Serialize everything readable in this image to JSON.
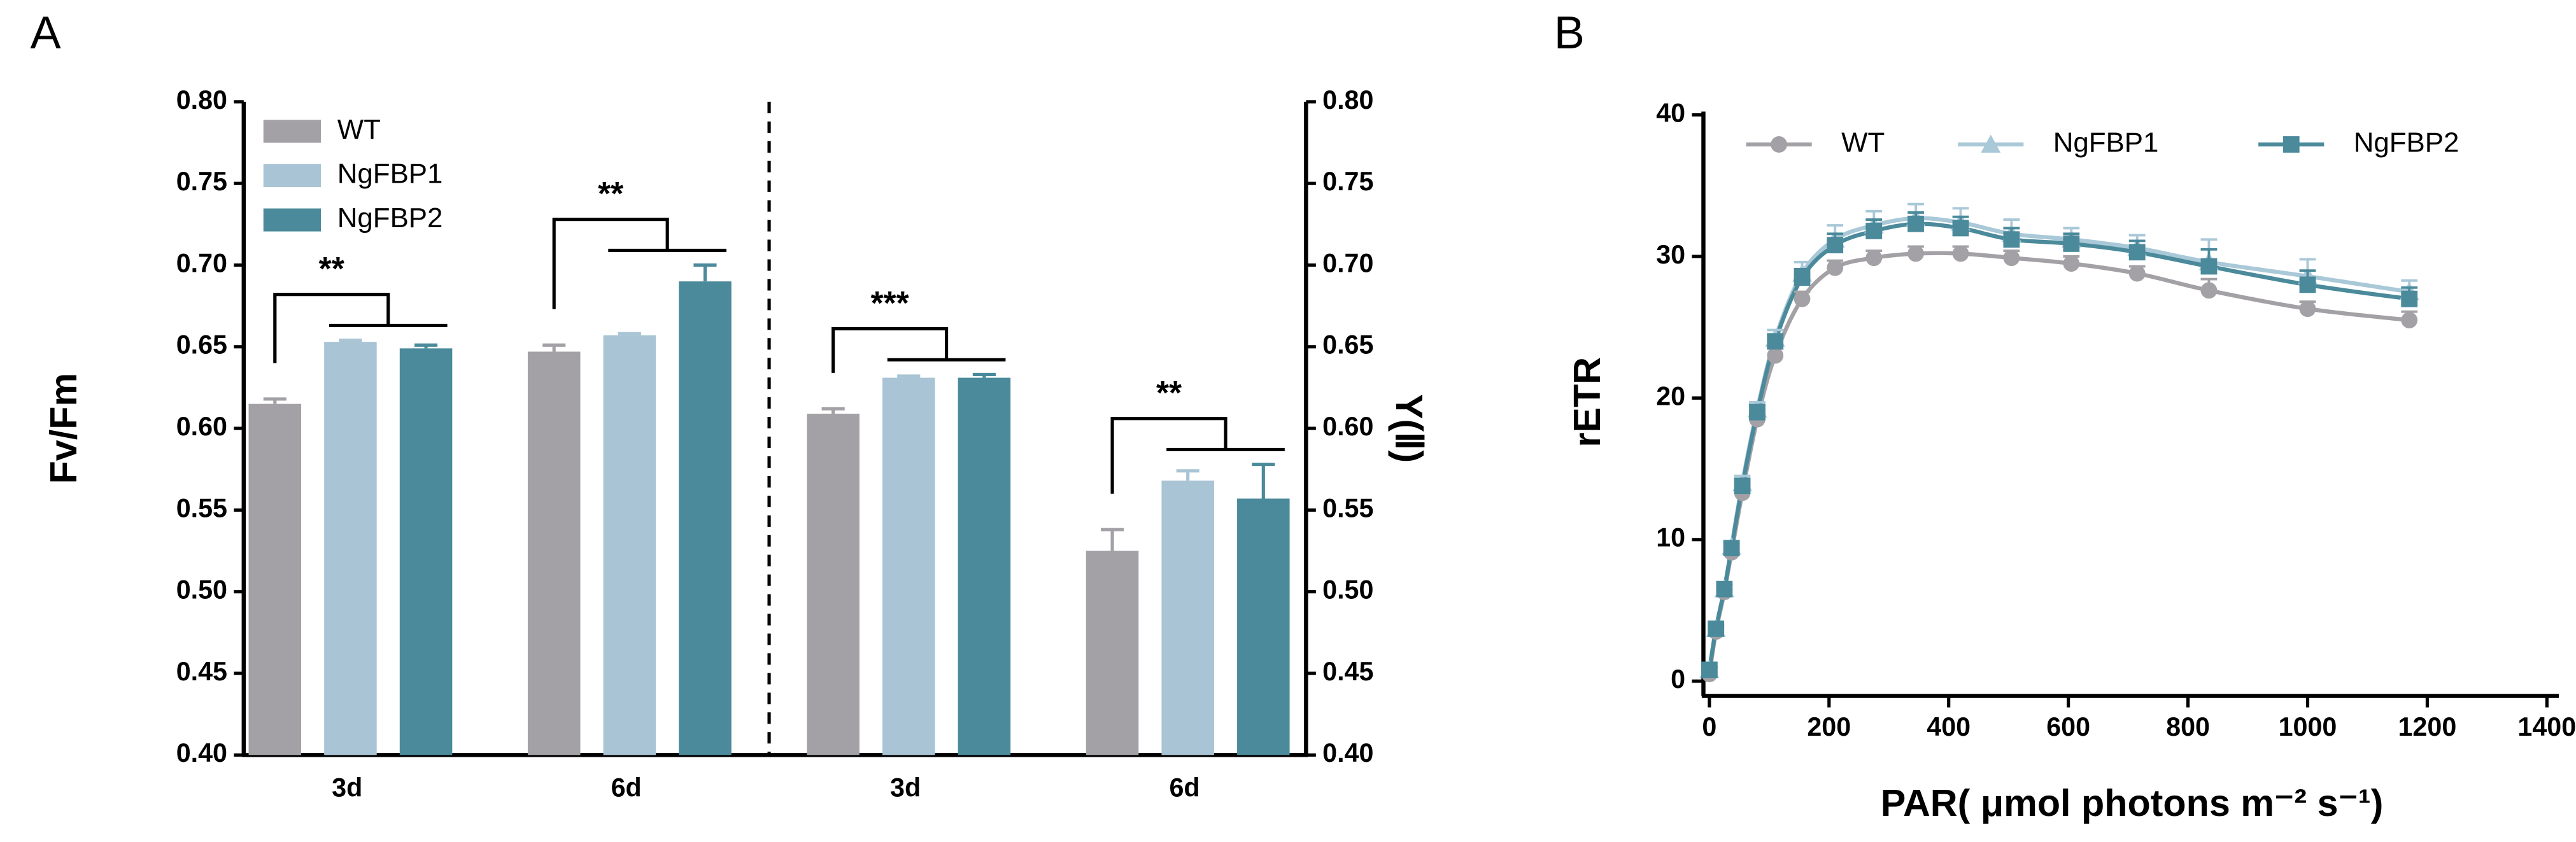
{
  "chart_data": [
    {
      "type": "bar",
      "panel_label": "A",
      "categories": [
        "3d",
        "6d",
        "3d",
        "6d"
      ],
      "series": [
        {
          "name": "WT",
          "color": "#a3a1a6",
          "values": [
            0.615,
            0.647,
            0.609,
            0.525
          ],
          "errors": [
            0.003,
            0.004,
            0.003,
            0.013
          ]
        },
        {
          "name": "NgFBP1",
          "color": "#a9c4d4",
          "values": [
            0.653,
            0.657,
            0.631,
            0.568
          ],
          "errors": [
            0.001,
            0.001,
            0.001,
            0.006
          ]
        },
        {
          "name": "NgFBP2",
          "color": "#4a8a9b",
          "values": [
            0.649,
            0.69,
            0.631,
            0.557
          ],
          "errors": [
            0.002,
            0.01,
            0.002,
            0.021
          ]
        }
      ],
      "ylabel": "Fv/Fm",
      "y2label": "Y(Ⅱ)",
      "ylim": [
        0.4,
        0.8
      ],
      "yticks": [
        {
          "value": 0.4,
          "label": "0.40"
        },
        0.45,
        {
          "value": 0.5,
          "label": "0.50"
        },
        0.55,
        {
          "value": 0.6,
          "label": "0.60"
        },
        0.65,
        {
          "value": 0.7,
          "label": "0.70"
        },
        0.75,
        {
          "value": 0.8,
          "label": "0.80"
        }
      ],
      "y2lim": [
        0.4,
        0.8
      ],
      "y2ticks": [
        {
          "value": 0.4,
          "label": "0.40"
        },
        0.45,
        {
          "value": 0.5,
          "label": "0.50"
        },
        0.55,
        {
          "value": 0.6,
          "label": "0.60"
        },
        0.65,
        {
          "value": 0.7,
          "label": "0.70"
        },
        0.75,
        {
          "value": 0.8,
          "label": "0.80"
        }
      ],
      "annotations": [
        {
          "text": "**",
          "category": 0
        },
        {
          "text": "**",
          "category": 1
        },
        {
          "text": "***",
          "category": 2
        },
        {
          "text": "**",
          "category": 3
        }
      ],
      "legend": "upper left"
    },
    {
      "type": "scatter",
      "panel_label": "B",
      "xlabel": "PAR( μmol photons m⁻² s⁻¹)",
      "ylabel": "rETR",
      "x": [
        0,
        11,
        25,
        37,
        55,
        80,
        110,
        155,
        210,
        275,
        345,
        420,
        505,
        605,
        715,
        835,
        1000,
        1170
      ],
      "series": [
        {
          "name": "WT",
          "color": "#a3a1a6",
          "marker": "circle",
          "values": [
            0.5,
            3.5,
            6.3,
            9.1,
            13.3,
            18.5,
            23.0,
            27.0,
            29.2,
            29.9,
            30.2,
            30.2,
            29.9,
            29.5,
            28.8,
            27.6,
            26.3,
            25.5
          ],
          "errors": [
            0.1,
            0.2,
            0.2,
            0.3,
            0.4,
            0.4,
            0.5,
            0.5,
            0.5,
            0.5,
            0.5,
            0.5,
            0.5,
            0.5,
            0.5,
            0.8,
            0.5,
            0.6
          ]
        },
        {
          "name": "NgFBP1",
          "color": "#a9c8d8",
          "marker": "triangle",
          "values": [
            0.8,
            3.7,
            6.5,
            9.5,
            14.0,
            19.2,
            24.2,
            28.8,
            31.2,
            32.2,
            32.7,
            32.4,
            31.6,
            31.2,
            30.6,
            29.6,
            28.6,
            27.5
          ],
          "errors": [
            0.2,
            0.2,
            0.3,
            0.3,
            0.5,
            0.5,
            0.6,
            0.8,
            1.0,
            1.0,
            1.0,
            1.0,
            1.0,
            0.8,
            0.9,
            1.6,
            1.2,
            0.8
          ]
        },
        {
          "name": "NgFBP2",
          "color": "#4a8a9b",
          "marker": "square",
          "values": [
            0.8,
            3.7,
            6.5,
            9.4,
            13.8,
            19.0,
            24.0,
            28.5,
            30.8,
            31.8,
            32.3,
            32.0,
            31.2,
            30.9,
            30.3,
            29.3,
            28.0,
            27.0
          ],
          "errors": [
            0.2,
            0.2,
            0.3,
            0.3,
            0.4,
            0.5,
            0.5,
            0.6,
            0.8,
            0.8,
            0.8,
            0.8,
            0.8,
            0.7,
            0.8,
            1.2,
            1.0,
            0.8
          ]
        }
      ],
      "xlim": [
        -10,
        1420
      ],
      "xticks": [
        0,
        200,
        400,
        600,
        800,
        1000,
        1200,
        1400
      ],
      "ylim": [
        -1,
        40
      ],
      "yticks": [
        0,
        10,
        20,
        30,
        40
      ],
      "legend": "top"
    }
  ]
}
